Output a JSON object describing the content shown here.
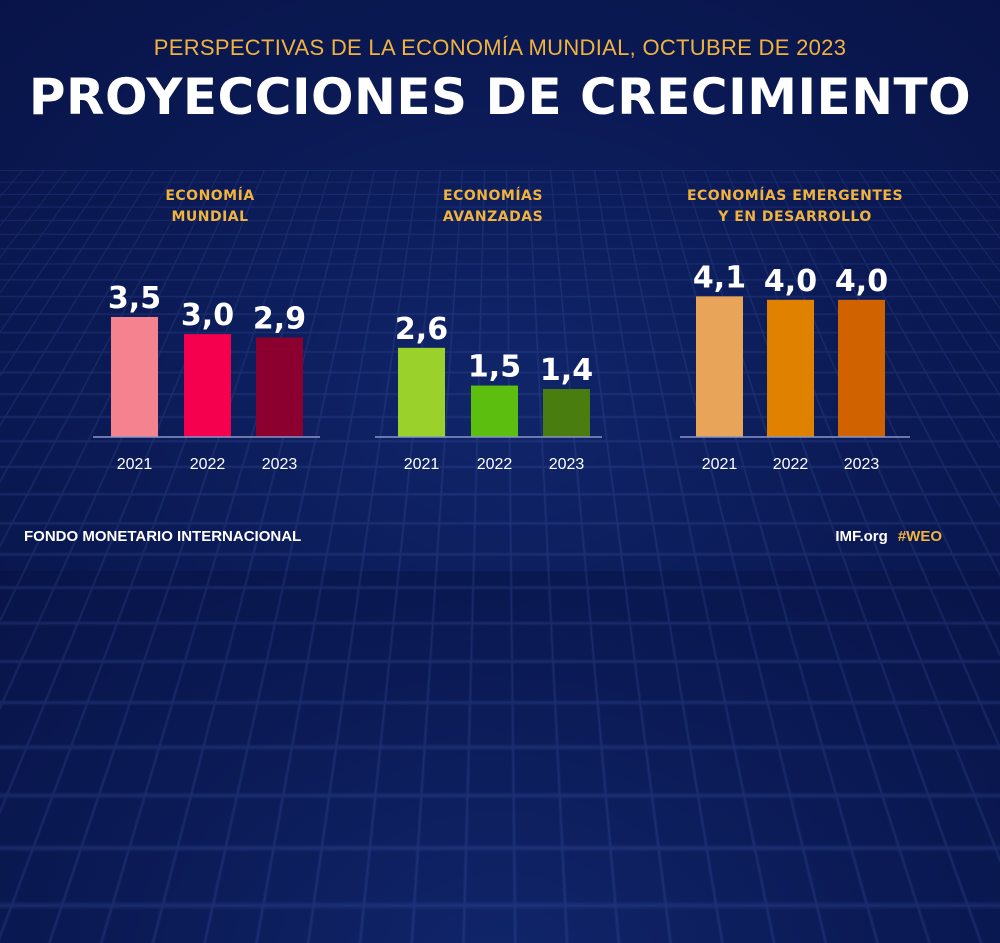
{
  "header": {
    "subtitle": "PERSPECTIVAS DE LA ECONOMÍA MUNDIAL, OCTUBRE DE 2023",
    "title": "PROYECCIONES DE CRECIMIENTO"
  },
  "footer": {
    "org": "FONDO MONETARIO INTERNACIONAL",
    "site": "IMF.org",
    "hashtag": "#WEO"
  },
  "chart_data": [
    {
      "type": "bar",
      "title": [
        "ECONOMÍA",
        "MUNDIAL"
      ],
      "categories": [
        "2021",
        "2022",
        "2023"
      ],
      "values": [
        3.5,
        3.0,
        2.9
      ],
      "labels": [
        "3,5",
        "3,0",
        "2,9"
      ],
      "colors": [
        "#f4828f",
        "#f5004f",
        "#8c0030"
      ],
      "ylim": [
        0,
        4.5
      ]
    },
    {
      "type": "bar",
      "title": [
        "ECONOMÍAS",
        "AVANZADAS"
      ],
      "categories": [
        "2021",
        "2022",
        "2023"
      ],
      "values": [
        2.6,
        1.5,
        1.4
      ],
      "labels": [
        "2,6",
        "1,5",
        "1,4"
      ],
      "colors": [
        "#9bd12b",
        "#5cbf10",
        "#4a7d10"
      ],
      "ylim": [
        0,
        4.5
      ]
    },
    {
      "type": "bar",
      "title": [
        "ECONOMÍAS EMERGENTES",
        "Y EN DESARROLLO"
      ],
      "categories": [
        "2021",
        "2022",
        "2023"
      ],
      "values": [
        4.1,
        4.0,
        4.0
      ],
      "labels": [
        "4,1",
        "4,0",
        "4,0"
      ],
      "colors": [
        "#e8a55a",
        "#e08200",
        "#d06200"
      ],
      "ylim": [
        0,
        4.5
      ]
    }
  ]
}
